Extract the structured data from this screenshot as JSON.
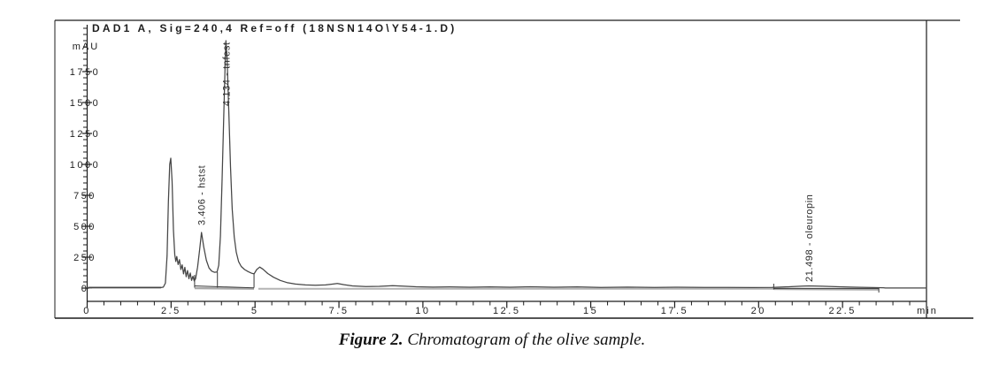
{
  "title": "DAD1 A, Sig=240,4 Ref=off (18NSN14O\\Y54-1.D)",
  "caption": {
    "label": "Figure 2.",
    "text": " Chromatogram of the olive sample."
  },
  "colors": {
    "trace": "#454545",
    "integration_gray": "#a9a9a9",
    "axis": "#1c1c1c",
    "text": "#1e1e1e",
    "peak_label_text": "#2a2a2a"
  },
  "chart_data": {
    "type": "line",
    "title": "DAD1 A, Sig=240,4 Ref=off (18NSN14O\\Y54-1.D)",
    "xlabel": "min",
    "ylabel": "mAU",
    "xlim": [
      0,
      25
    ],
    "ylim": [
      0,
      2160
    ],
    "x_major_ticks": [
      0,
      2.5,
      5,
      7.5,
      10,
      12.5,
      15,
      17.5,
      20,
      22.5
    ],
    "x_minor_step": 0.5,
    "y_major_ticks": [
      0,
      250,
      500,
      750,
      1000,
      1250,
      1500,
      1750
    ],
    "y_minor_step": 50,
    "grid": false,
    "legend": false,
    "peaks": [
      {
        "rt": 2.49,
        "label": "",
        "height_mAU": 1050
      },
      {
        "rt": 3.406,
        "label": "3.406 - hstst",
        "height_mAU": 450
      },
      {
        "rt": 4.134,
        "label": "4.134 - tnfest",
        "height_mAU": 2000
      },
      {
        "rt": 21.498,
        "label": "21.498 - oleuropin",
        "height_mAU": 18
      }
    ],
    "integration_segments": [
      {
        "start": 3.2,
        "end": 4.97,
        "level_mAU": 8
      },
      {
        "start": 20.45,
        "end": 23.58,
        "level_mAU": 2
      }
    ],
    "drop_line_times": [
      3.2,
      3.88,
      4.97
    ],
    "trace": [
      [
        0,
        4
      ],
      [
        2.2,
        4
      ],
      [
        2.27,
        8
      ],
      [
        2.33,
        40
      ],
      [
        2.38,
        260
      ],
      [
        2.42,
        700
      ],
      [
        2.46,
        1000
      ],
      [
        2.49,
        1050
      ],
      [
        2.53,
        860
      ],
      [
        2.57,
        470
      ],
      [
        2.61,
        270
      ],
      [
        2.64,
        215
      ],
      [
        2.67,
        255
      ],
      [
        2.71,
        190
      ],
      [
        2.75,
        230
      ],
      [
        2.79,
        150
      ],
      [
        2.83,
        188
      ],
      [
        2.87,
        115
      ],
      [
        2.91,
        168
      ],
      [
        2.95,
        92
      ],
      [
        2.99,
        142
      ],
      [
        3.03,
        76
      ],
      [
        3.07,
        122
      ],
      [
        3.11,
        62
      ],
      [
        3.15,
        96
      ],
      [
        3.19,
        58
      ],
      [
        3.23,
        75
      ],
      [
        3.29,
        170
      ],
      [
        3.35,
        310
      ],
      [
        3.406,
        450
      ],
      [
        3.47,
        335
      ],
      [
        3.55,
        225
      ],
      [
        3.63,
        163
      ],
      [
        3.71,
        137
      ],
      [
        3.79,
        128
      ],
      [
        3.87,
        131
      ],
      [
        3.92,
        185
      ],
      [
        3.97,
        420
      ],
      [
        4.02,
        880
      ],
      [
        4.07,
        1400
      ],
      [
        4.11,
        1800
      ],
      [
        4.134,
        2000
      ],
      [
        4.17,
        1840
      ],
      [
        4.22,
        1420
      ],
      [
        4.27,
        980
      ],
      [
        4.32,
        640
      ],
      [
        4.38,
        415
      ],
      [
        4.44,
        290
      ],
      [
        4.51,
        215
      ],
      [
        4.59,
        175
      ],
      [
        4.69,
        150
      ],
      [
        4.8,
        133
      ],
      [
        4.9,
        120
      ],
      [
        4.97,
        115
      ],
      [
        5.05,
        150
      ],
      [
        5.14,
        170
      ],
      [
        5.24,
        152
      ],
      [
        5.38,
        118
      ],
      [
        5.55,
        88
      ],
      [
        5.75,
        62
      ],
      [
        5.95,
        45
      ],
      [
        6.2,
        33
      ],
      [
        6.5,
        26
      ],
      [
        6.8,
        23
      ],
      [
        7.1,
        26
      ],
      [
        7.3,
        32
      ],
      [
        7.45,
        38
      ],
      [
        7.65,
        28
      ],
      [
        7.9,
        18
      ],
      [
        8.3,
        12
      ],
      [
        8.7,
        14
      ],
      [
        9.1,
        19
      ],
      [
        9.4,
        16
      ],
      [
        9.8,
        11
      ],
      [
        10.3,
        8
      ],
      [
        10.8,
        10
      ],
      [
        11.4,
        7
      ],
      [
        12,
        10
      ],
      [
        12.6,
        7
      ],
      [
        13.2,
        11
      ],
      [
        13.9,
        7
      ],
      [
        14.6,
        10
      ],
      [
        15.3,
        6
      ],
      [
        16.1,
        8
      ],
      [
        16.9,
        5
      ],
      [
        17.6,
        7
      ],
      [
        18.4,
        5
      ],
      [
        19.1,
        6
      ],
      [
        19.8,
        4
      ],
      [
        20.4,
        6
      ],
      [
        20.9,
        11
      ],
      [
        21.3,
        16
      ],
      [
        21.5,
        18
      ],
      [
        21.9,
        15
      ],
      [
        22.4,
        11
      ],
      [
        22.9,
        7
      ],
      [
        23.4,
        4
      ],
      [
        23.72,
        3
      ],
      [
        23.78,
        1
      ],
      [
        25,
        1
      ]
    ]
  }
}
